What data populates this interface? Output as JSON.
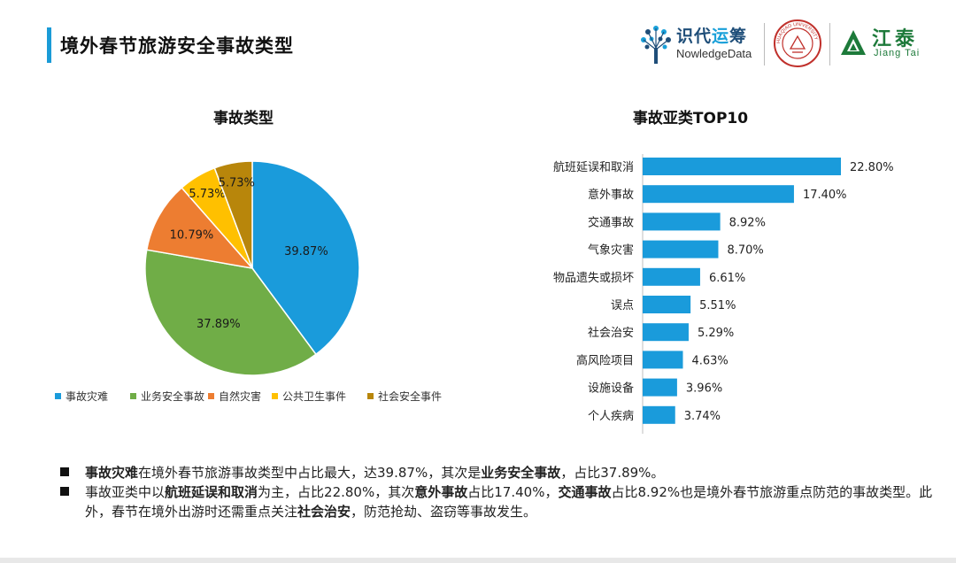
{
  "page": {
    "title": "境外春节旅游安全事故类型"
  },
  "logos": {
    "kd_cn_a": "识代",
    "kd_cn_b": "运",
    "kd_cn_c": "筹",
    "kd_en": "NowledgeData",
    "seal_text": "HUAQIAO UNIVERSITY",
    "jt_cn": "江泰",
    "jt_en": "Jiang Tai"
  },
  "chart_data": [
    {
      "type": "pie",
      "title": "事故类型",
      "categories": [
        "事故灾难",
        "业务安全事故",
        "自然灾害",
        "公共卫生事件",
        "社会安全事件"
      ],
      "values": [
        39.87,
        37.89,
        10.79,
        5.73,
        5.73
      ],
      "labels": [
        "39.87%",
        "37.89%",
        "10.79%",
        "5.73%",
        "5.73%"
      ],
      "colors": [
        "#1a9bdb",
        "#70ad47",
        "#ed7d31",
        "#ffc000",
        "#b8860b"
      ],
      "legend": "bottom"
    },
    {
      "type": "bar",
      "orientation": "horizontal",
      "title": "事故亚类TOP10",
      "categories": [
        "航班延误和取消",
        "意外事故",
        "交通事故",
        "气象灾害",
        "物品遗失或损坏",
        "误点",
        "社会治安",
        "高风险项目",
        "设施设备",
        "个人疾病"
      ],
      "values": [
        22.8,
        17.4,
        8.92,
        8.7,
        6.61,
        5.51,
        5.29,
        4.63,
        3.96,
        3.74
      ],
      "labels": [
        "22.80%",
        "17.40%",
        "8.92%",
        "8.70%",
        "6.61%",
        "5.51%",
        "5.29%",
        "4.63%",
        "3.96%",
        "3.74%"
      ],
      "color": "#1a9bdb"
    }
  ],
  "notes": [
    [
      {
        "text": "事故灾难",
        "bold": true
      },
      {
        "text": "在境外春节旅游事故类型中占比最大，达39.87%，其次是",
        "bold": false
      },
      {
        "text": "业务安全事故",
        "bold": true
      },
      {
        "text": "，占比37.89%。",
        "bold": false
      }
    ],
    [
      {
        "text": "事故亚类中以",
        "bold": false
      },
      {
        "text": "航班延误和取消",
        "bold": true
      },
      {
        "text": "为主，占比22.80%，其次",
        "bold": false
      },
      {
        "text": "意外事故",
        "bold": true
      },
      {
        "text": "占比17.40%，",
        "bold": false
      },
      {
        "text": "交通事故",
        "bold": true
      },
      {
        "text": "占比8.92%也是境外春节旅游重点防范的事故类型。此外，春节在境外出游时还需重点关注",
        "bold": false
      },
      {
        "text": "社会治安",
        "bold": true
      },
      {
        "text": "，防范抢劫、盗窃等事故发生。",
        "bold": false
      }
    ]
  ]
}
